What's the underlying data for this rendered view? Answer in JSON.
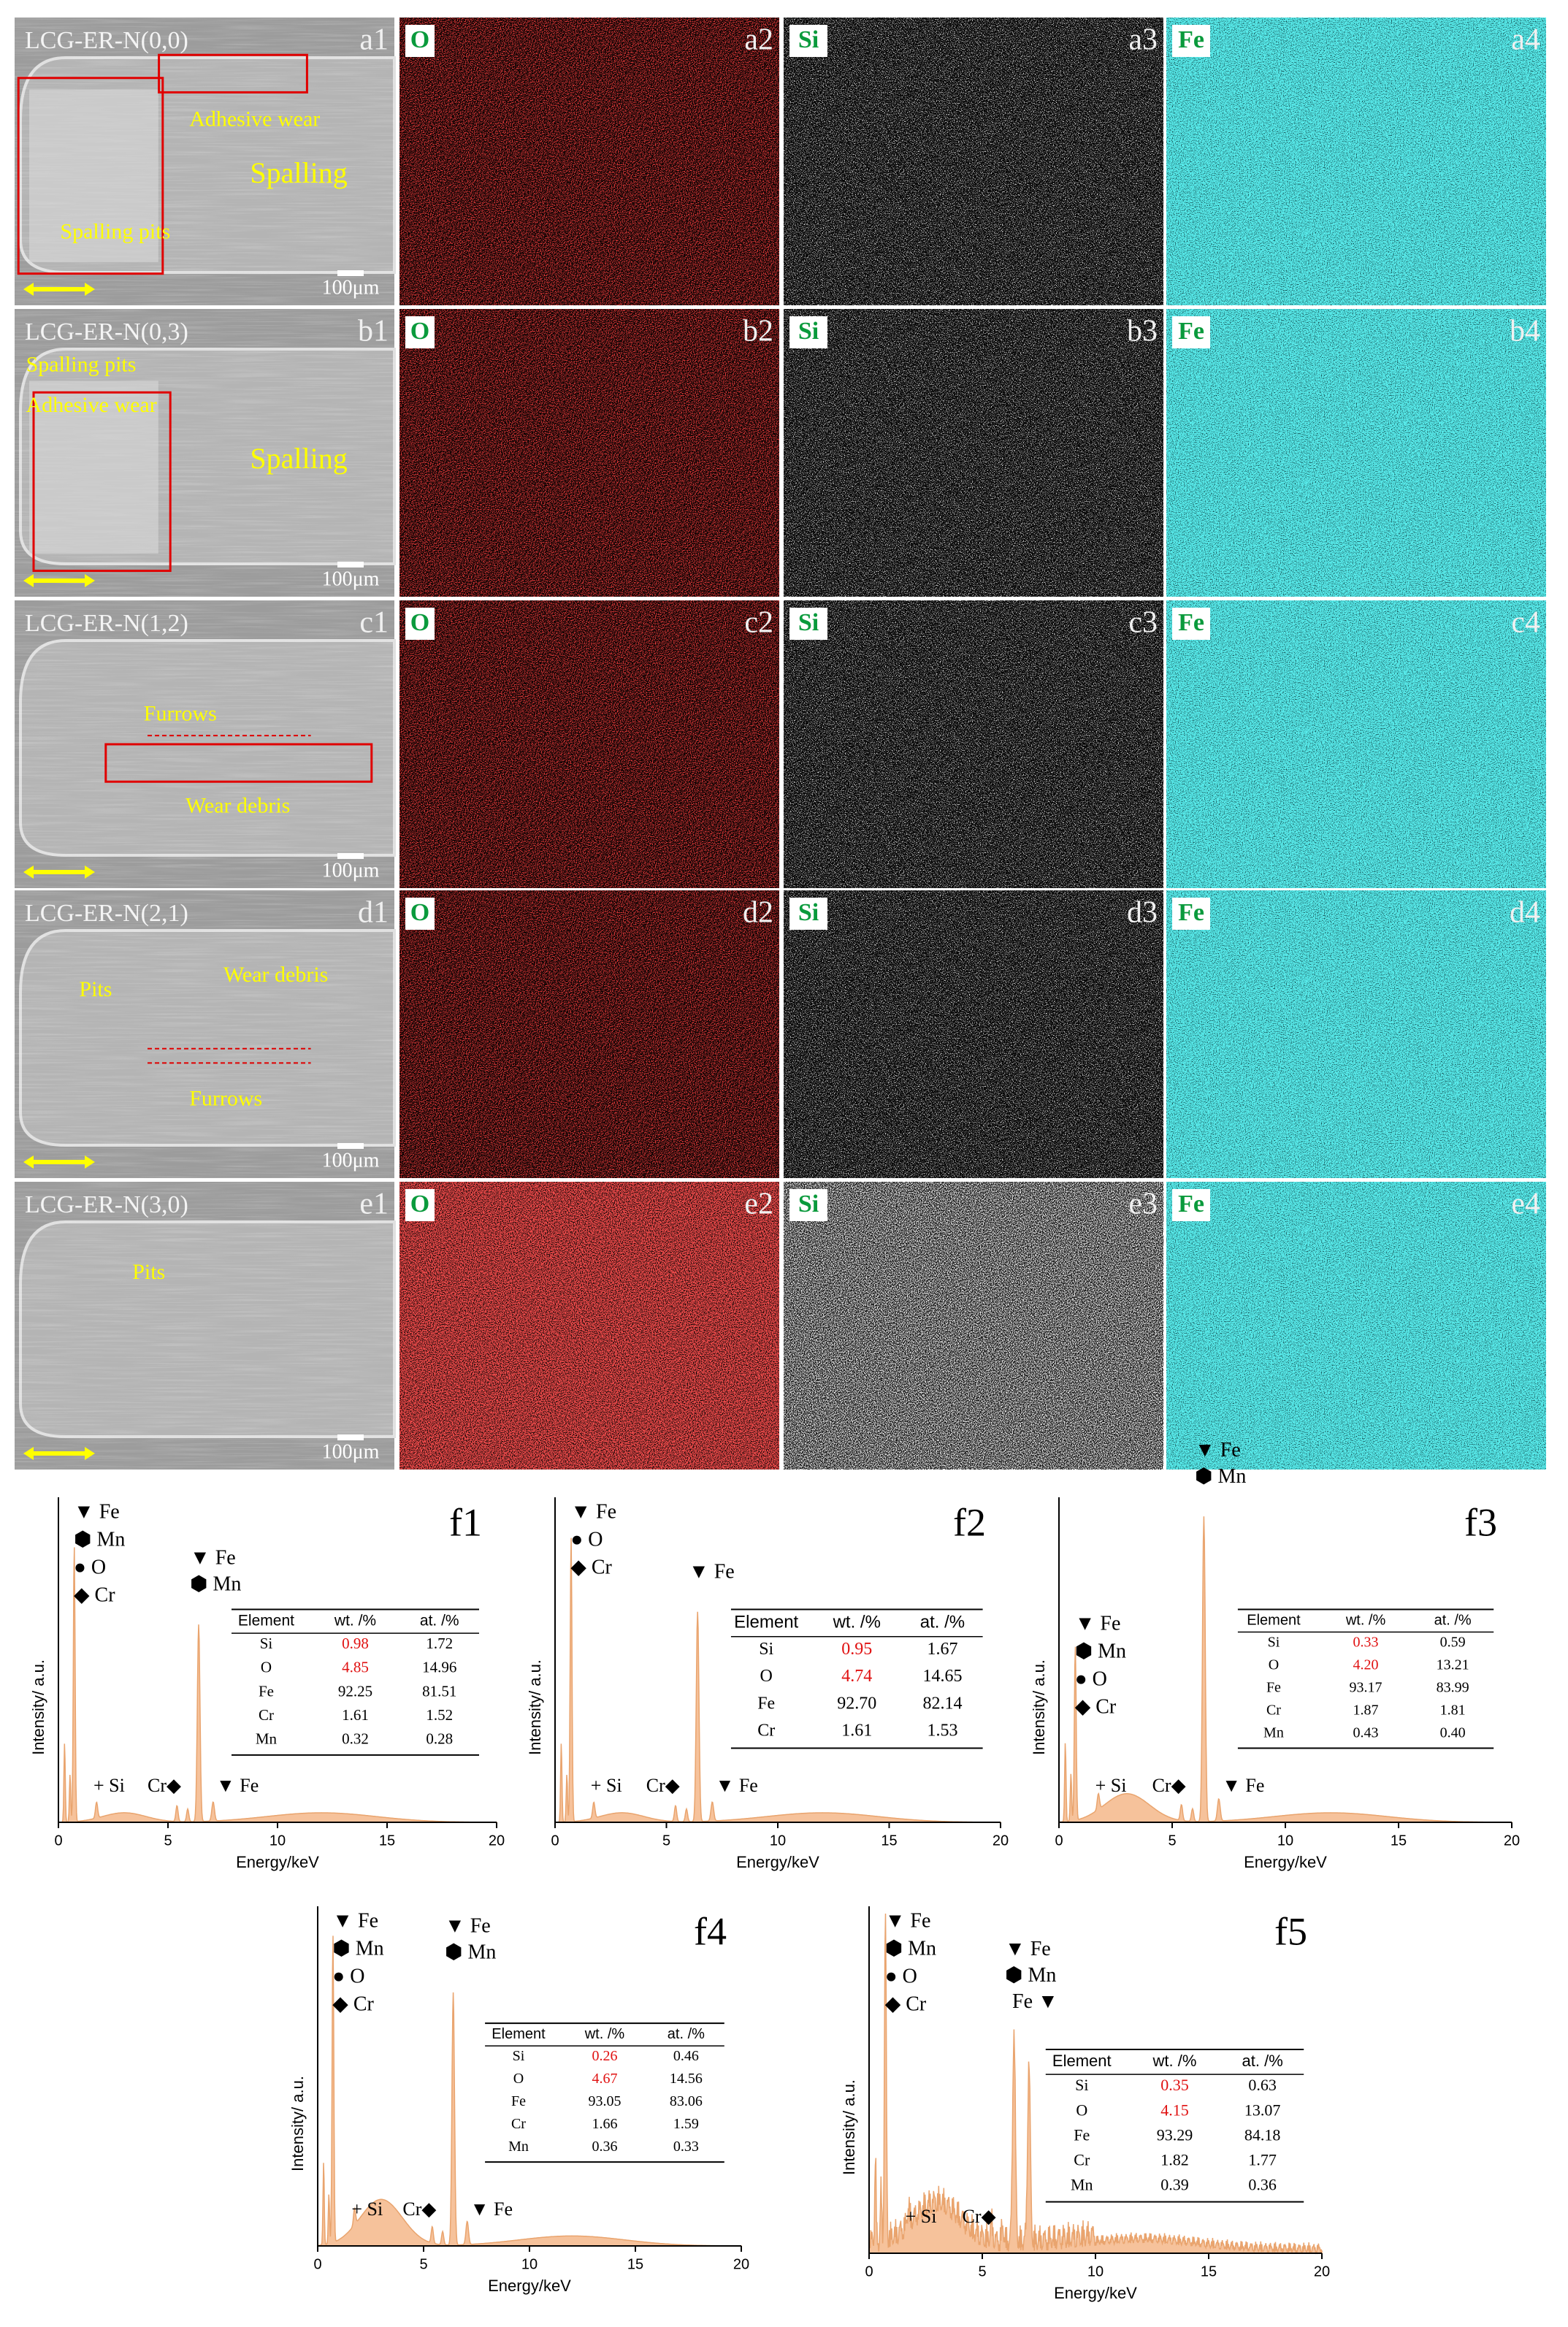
{
  "figure": {
    "rows": [
      {
        "sample": "LCG-ER-N(0,0)",
        "panel_labels": [
          "a1",
          "a2",
          "a3",
          "a4"
        ],
        "annotations": [
          "Adhesive wear",
          "Spalling",
          "Spalling pits"
        ]
      },
      {
        "sample": "LCG-ER-N(0,3)",
        "panel_labels": [
          "b1",
          "b2",
          "b3",
          "b4"
        ],
        "annotations": [
          "Spalling pits",
          "Adhesive wear",
          "Spalling"
        ]
      },
      {
        "sample": "LCG-ER-N(1,2)",
        "panel_labels": [
          "c1",
          "c2",
          "c3",
          "c4"
        ],
        "annotations": [
          "Furrows",
          "Wear debris"
        ]
      },
      {
        "sample": "LCG-ER-N(2,1)",
        "panel_labels": [
          "d1",
          "d2",
          "d3",
          "d4"
        ],
        "annotations": [
          "Pits",
          "Wear debris",
          "Furrows"
        ]
      },
      {
        "sample": "LCG-ER-N(3,0)",
        "panel_labels": [
          "e1",
          "e2",
          "e3",
          "e4"
        ],
        "annotations": [
          "Pits"
        ]
      }
    ],
    "map_elements": [
      "O",
      "Si",
      "Fe"
    ],
    "scale_bar": "100μm",
    "spectra": [
      {
        "label": "f1",
        "y_axis_label": "Intensity/ a.u.",
        "x_axis_label": "Energy/keV",
        "xlim": [
          0,
          20
        ],
        "xticks": [
          0,
          5,
          10,
          15,
          20
        ],
        "peak_labels": {
          "low": [
            "▼ Fe",
            "⬢ Mn",
            "● O",
            "◆ Cr"
          ],
          "main": [
            "▼ Fe",
            "⬢ Mn"
          ],
          "minor": [
            "+ Si",
            "Cr◆",
            "▼ Fe"
          ]
        },
        "table": {
          "header": [
            "Element",
            "wt. /%",
            "at. /%"
          ],
          "rows": [
            [
              "Si",
              "0.98",
              "1.72"
            ],
            [
              "O",
              "4.85",
              "14.96"
            ],
            [
              "Fe",
              "92.25",
              "81.51"
            ],
            [
              "Cr",
              "1.61",
              "1.52"
            ],
            [
              "Mn",
              "0.32",
              "0.28"
            ]
          ]
        }
      },
      {
        "label": "f2",
        "y_axis_label": "Intensity/ a.u.",
        "x_axis_label": "Energy/keV",
        "xlim": [
          0,
          20
        ],
        "xticks": [
          0,
          5,
          10,
          15,
          20
        ],
        "peak_labels": {
          "low": [
            "▼ Fe",
            "● O",
            "◆ Cr"
          ],
          "main": [
            "▼ Fe"
          ],
          "minor": [
            "+ Si",
            "Cr◆",
            "▼ Fe"
          ]
        },
        "table": {
          "header": [
            "Element",
            "wt. /%",
            "at. /%"
          ],
          "rows": [
            [
              "Si",
              "0.95",
              "1.67"
            ],
            [
              "O",
              "4.74",
              "14.65"
            ],
            [
              "Fe",
              "92.70",
              "82.14"
            ],
            [
              "Cr",
              "1.61",
              "1.53"
            ]
          ]
        }
      },
      {
        "label": "f3",
        "y_axis_label": "Intensity/ a.u.",
        "x_axis_label": "Energy/keV",
        "xlim": [
          0,
          20
        ],
        "xticks": [
          0,
          5,
          10,
          15,
          20
        ],
        "peak_labels": {
          "low": [
            "▼ Fe",
            "⬢ Mn",
            "● O",
            "◆ Cr"
          ],
          "main": [
            "▼ Fe",
            "⬢ Mn"
          ],
          "minor": [
            "+ Si",
            "Cr◆",
            "▼ Fe"
          ]
        },
        "table": {
          "header": [
            "Element",
            "wt. /%",
            "at. /%"
          ],
          "rows": [
            [
              "Si",
              "0.33",
              "0.59"
            ],
            [
              "O",
              "4.20",
              "13.21"
            ],
            [
              "Fe",
              "93.17",
              "83.99"
            ],
            [
              "Cr",
              "1.87",
              "1.81"
            ],
            [
              "Mn",
              "0.43",
              "0.40"
            ]
          ]
        }
      },
      {
        "label": "f4",
        "y_axis_label": "Intensity/ a.u.",
        "x_axis_label": "Energy/keV",
        "xlim": [
          0,
          20
        ],
        "xticks": [
          0,
          5,
          10,
          15,
          20
        ],
        "peak_labels": {
          "low": [
            "▼ Fe",
            "⬢ Mn",
            "● O",
            "◆ Cr"
          ],
          "main": [
            "▼ Fe",
            "⬢ Mn"
          ],
          "minor": [
            "+ Si",
            "Cr◆",
            "▼ Fe"
          ]
        },
        "table": {
          "header": [
            "Element",
            "wt. /%",
            "at. /%"
          ],
          "rows": [
            [
              "Si",
              "0.26",
              "0.46"
            ],
            [
              "O",
              "4.67",
              "14.56"
            ],
            [
              "Fe",
              "93.05",
              "83.06"
            ],
            [
              "Cr",
              "1.66",
              "1.59"
            ],
            [
              "Mn",
              "0.36",
              "0.33"
            ]
          ]
        }
      },
      {
        "label": "f5",
        "y_axis_label": "Intensity/ a.u.",
        "x_axis_label": "Energy/keV",
        "xlim": [
          0,
          20
        ],
        "xticks": [
          0,
          5,
          10,
          15,
          20
        ],
        "peak_labels": {
          "low": [
            "▼ Fe",
            "⬢ Mn",
            "● O",
            "◆ Cr"
          ],
          "main": [
            "▼ Fe",
            "⬢ Mn",
            "Fe ▼"
          ],
          "minor": [
            "+ Si",
            "Cr◆"
          ]
        },
        "table": {
          "header": [
            "Element",
            "wt. /%",
            "at. /%"
          ],
          "rows": [
            [
              "Si",
              "0.35",
              "0.63"
            ],
            [
              "O",
              "4.15",
              "13.07"
            ],
            [
              "Fe",
              "93.29",
              "84.18"
            ],
            [
              "Cr",
              "1.82",
              "1.77"
            ],
            [
              "Mn",
              "0.39",
              "0.36"
            ]
          ]
        }
      }
    ]
  }
}
